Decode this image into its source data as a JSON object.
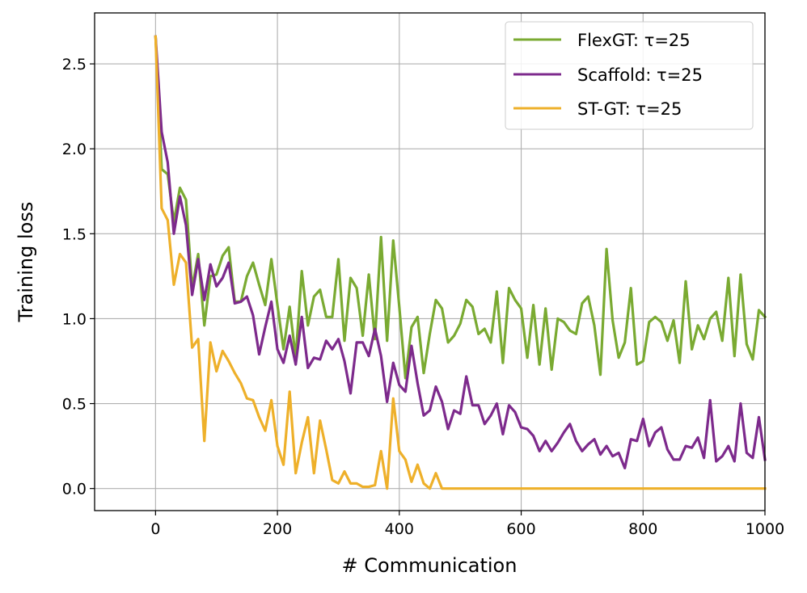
{
  "chart_data": {
    "type": "line",
    "title": "",
    "xlabel": "# Communication",
    "ylabel": "Training loss",
    "xlim": [
      -100,
      1000
    ],
    "ylim": [
      -0.13,
      2.8
    ],
    "xticks": [
      0,
      200,
      400,
      600,
      800,
      1000
    ],
    "xtick_labels": [
      "0",
      "200",
      "400",
      "600",
      "800",
      "1000"
    ],
    "yticks": [
      0.0,
      0.5,
      1.0,
      1.5,
      2.0,
      2.5
    ],
    "ytick_labels": [
      "0.0",
      "0.5",
      "1.0",
      "1.5",
      "2.0",
      "2.5"
    ],
    "grid": true,
    "legend_position": "top-right",
    "series": [
      {
        "name": "FlexGT: τ=25",
        "color": "#7aaa32",
        "x": [
          0,
          10,
          20,
          30,
          40,
          50,
          60,
          70,
          80,
          90,
          100,
          110,
          120,
          130,
          140,
          150,
          160,
          170,
          180,
          190,
          200,
          210,
          220,
          230,
          240,
          250,
          260,
          270,
          280,
          290,
          300,
          310,
          320,
          330,
          340,
          350,
          360,
          370,
          380,
          390,
          400,
          410,
          420,
          430,
          440,
          450,
          460,
          470,
          480,
          490,
          500,
          510,
          520,
          530,
          540,
          550,
          560,
          570,
          580,
          590,
          600,
          610,
          620,
          630,
          640,
          650,
          660,
          670,
          680,
          690,
          700,
          710,
          720,
          730,
          740,
          750,
          760,
          770,
          780,
          790,
          800,
          810,
          820,
          830,
          840,
          850,
          860,
          870,
          880,
          890,
          900,
          910,
          920,
          930,
          940,
          950,
          960,
          970,
          980,
          990,
          1000
        ],
        "values": [
          2.66,
          1.88,
          1.85,
          1.57,
          1.77,
          1.7,
          1.18,
          1.38,
          0.96,
          1.25,
          1.26,
          1.37,
          1.42,
          1.1,
          1.1,
          1.25,
          1.33,
          1.2,
          1.08,
          1.35,
          1.08,
          0.82,
          1.07,
          0.77,
          1.28,
          0.96,
          1.13,
          1.17,
          1.01,
          1.01,
          1.35,
          0.87,
          1.24,
          1.18,
          0.9,
          1.26,
          0.88,
          1.48,
          0.87,
          1.46,
          1.07,
          0.65,
          0.95,
          1.01,
          0.68,
          0.91,
          1.11,
          1.06,
          0.86,
          0.9,
          0.97,
          1.11,
          1.07,
          0.91,
          0.94,
          0.86,
          1.16,
          0.74,
          1.18,
          1.11,
          1.06,
          0.77,
          1.08,
          0.73,
          1.06,
          0.7,
          1.0,
          0.98,
          0.93,
          0.91,
          1.09,
          1.13,
          0.96,
          0.67,
          1.41,
          0.99,
          0.77,
          0.86,
          1.18,
          0.73,
          0.75,
          0.98,
          1.01,
          0.98,
          0.87,
          0.99,
          0.74,
          1.22,
          0.82,
          0.96,
          0.88,
          1.0,
          1.04,
          0.87,
          1.24,
          0.78,
          1.26,
          0.85,
          0.76,
          1.05,
          1.01
        ]
      },
      {
        "name": "Scaffold: τ=25",
        "color": "#7d2a8c",
        "x": [
          0,
          10,
          20,
          30,
          40,
          50,
          60,
          70,
          80,
          90,
          100,
          110,
          120,
          130,
          140,
          150,
          160,
          170,
          180,
          190,
          200,
          210,
          220,
          230,
          240,
          250,
          260,
          270,
          280,
          290,
          300,
          310,
          320,
          330,
          340,
          350,
          360,
          370,
          380,
          390,
          400,
          410,
          420,
          430,
          440,
          450,
          460,
          470,
          480,
          490,
          500,
          510,
          520,
          530,
          540,
          550,
          560,
          570,
          580,
          590,
          600,
          610,
          620,
          630,
          640,
          650,
          660,
          670,
          680,
          690,
          700,
          710,
          720,
          730,
          740,
          750,
          760,
          770,
          780,
          790,
          800,
          810,
          820,
          830,
          840,
          850,
          860,
          870,
          880,
          890,
          900,
          910,
          920,
          930,
          940,
          950,
          960,
          970,
          980,
          990,
          1000
        ],
        "values": [
          2.66,
          2.1,
          1.92,
          1.5,
          1.72,
          1.55,
          1.14,
          1.35,
          1.11,
          1.32,
          1.19,
          1.24,
          1.33,
          1.09,
          1.1,
          1.13,
          1.02,
          0.79,
          0.95,
          1.1,
          0.82,
          0.74,
          0.9,
          0.73,
          1.01,
          0.71,
          0.77,
          0.76,
          0.87,
          0.82,
          0.88,
          0.75,
          0.56,
          0.86,
          0.86,
          0.78,
          0.94,
          0.78,
          0.51,
          0.74,
          0.61,
          0.57,
          0.84,
          0.62,
          0.43,
          0.46,
          0.6,
          0.51,
          0.35,
          0.46,
          0.44,
          0.66,
          0.49,
          0.49,
          0.38,
          0.43,
          0.5,
          0.32,
          0.49,
          0.45,
          0.36,
          0.35,
          0.31,
          0.22,
          0.28,
          0.22,
          0.27,
          0.33,
          0.38,
          0.28,
          0.22,
          0.26,
          0.29,
          0.2,
          0.25,
          0.19,
          0.21,
          0.12,
          0.29,
          0.28,
          0.41,
          0.25,
          0.33,
          0.36,
          0.23,
          0.17,
          0.17,
          0.25,
          0.24,
          0.3,
          0.18,
          0.52,
          0.16,
          0.19,
          0.25,
          0.16,
          0.5,
          0.21,
          0.18,
          0.42,
          0.17
        ]
      },
      {
        "name": "ST-GT: τ=25",
        "color": "#eeb02a",
        "x": [
          0,
          10,
          20,
          30,
          40,
          50,
          60,
          70,
          80,
          90,
          100,
          110,
          120,
          130,
          140,
          150,
          160,
          170,
          180,
          190,
          200,
          210,
          220,
          230,
          240,
          250,
          260,
          270,
          280,
          290,
          300,
          310,
          320,
          330,
          340,
          350,
          360,
          370,
          380,
          390,
          400,
          410,
          420,
          430,
          440,
          450,
          460,
          470,
          480,
          490,
          500,
          510,
          520,
          530,
          540,
          550,
          560,
          570,
          580,
          590,
          600,
          610,
          620,
          630,
          640,
          650,
          660,
          670,
          680,
          690,
          700,
          710,
          720,
          730,
          740,
          750,
          760,
          770,
          780,
          790,
          800,
          810,
          820,
          830,
          840,
          850,
          860,
          870,
          880,
          890,
          900,
          910,
          920,
          930,
          940,
          950,
          960,
          970,
          980,
          990,
          1000
        ],
        "values": [
          2.66,
          1.65,
          1.58,
          1.2,
          1.38,
          1.33,
          0.83,
          0.88,
          0.28,
          0.86,
          0.69,
          0.81,
          0.75,
          0.68,
          0.62,
          0.53,
          0.52,
          0.42,
          0.34,
          0.52,
          0.25,
          0.14,
          0.57,
          0.09,
          0.27,
          0.42,
          0.09,
          0.4,
          0.23,
          0.05,
          0.03,
          0.1,
          0.03,
          0.03,
          0.01,
          0.01,
          0.02,
          0.22,
          0.0,
          0.53,
          0.22,
          0.17,
          0.04,
          0.14,
          0.03,
          0.0,
          0.09,
          0.0,
          0.0,
          0.0,
          0.0,
          0.0,
          0.0,
          0.0,
          0.0,
          0.0,
          0.0,
          0.0,
          0.0,
          0.0,
          0.0,
          0.0,
          0.0,
          0.0,
          0.0,
          0.0,
          0.0,
          0.0,
          0.0,
          0.0,
          0.0,
          0.0,
          0.0,
          0.0,
          0.0,
          0.0,
          0.0,
          0.0,
          0.0,
          0.0,
          0.0,
          0.0,
          0.0,
          0.0,
          0.0,
          0.0,
          0.0,
          0.0,
          0.0,
          0.0,
          0.0,
          0.0,
          0.0,
          0.0,
          0.0,
          0.0,
          0.0,
          0.0,
          0.0,
          0.0,
          0.0
        ]
      }
    ]
  }
}
